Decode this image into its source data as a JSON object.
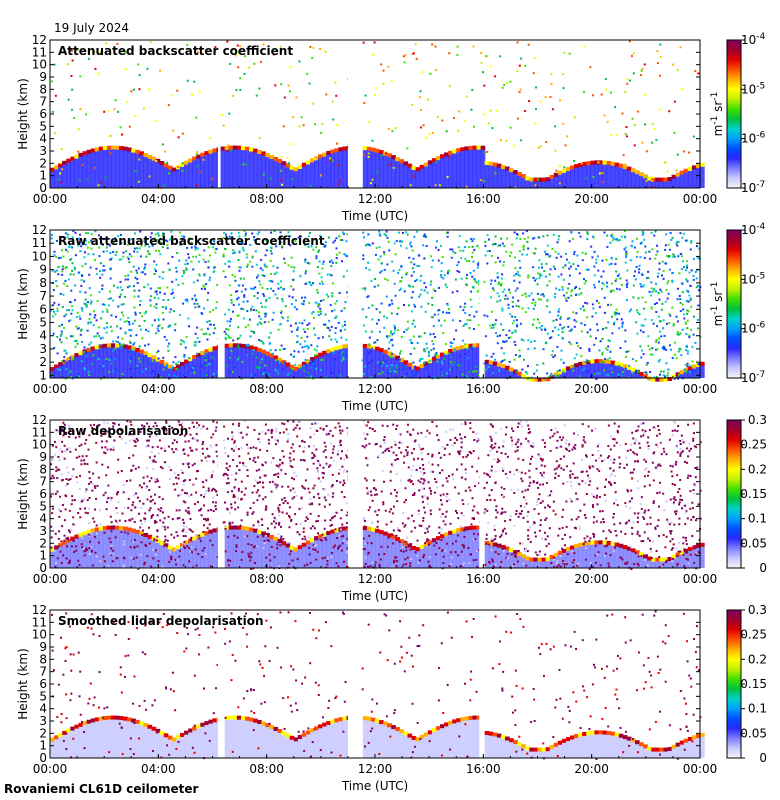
{
  "date": "19 July 2024",
  "footer": "Rovaniemi CL61D ceilometer",
  "colors": {
    "jet": [
      "#f4f4f4",
      "#c8c8ff",
      "#7d7dff",
      "#2828ff",
      "#0050ff",
      "#00a0ff",
      "#00d2c8",
      "#00c040",
      "#40e000",
      "#c0f000",
      "#ffff00",
      "#ffb000",
      "#ff5000",
      "#e00000",
      "#a00030",
      "#800060"
    ]
  },
  "chart_data": [
    {
      "type": "heatmap",
      "title": "Attenuated backscatter coefficient",
      "xlabel": "Time (UTC)",
      "ylabel": "Height (km)",
      "x_ticks": [
        "00:00",
        "04:00",
        "08:00",
        "12:00",
        "16:00",
        "20:00",
        "00:00"
      ],
      "y_ticks": [
        "0",
        "1",
        "2",
        "3",
        "4",
        "5",
        "6",
        "7",
        "8",
        "9",
        "10",
        "11",
        "12"
      ],
      "xlim": [
        0,
        24
      ],
      "ylim": [
        0,
        12
      ],
      "colorbar": {
        "scale": "log",
        "ticks": [
          {
            "base": "10",
            "exp": "-4"
          },
          {
            "base": "10",
            "exp": "-5"
          },
          {
            "base": "10",
            "exp": "-6"
          },
          {
            "base": "10",
            "exp": "-7"
          }
        ],
        "unit_main": "m",
        "unit_exp1": "-1",
        "unit_mid": " sr",
        "unit_exp2": "-1"
      }
    },
    {
      "type": "heatmap",
      "title": "Raw attenuated backscatter coefficient",
      "xlabel": "Time (UTC)",
      "ylabel": "Height (km)",
      "x_ticks": [
        "00:00",
        "04:00",
        "08:00",
        "12:00",
        "16:00",
        "20:00",
        "00:00"
      ],
      "y_ticks": [
        "1",
        "2",
        "3",
        "4",
        "5",
        "6",
        "7",
        "8",
        "9",
        "10",
        "11",
        "12"
      ],
      "xlim": [
        0,
        24
      ],
      "ylim": [
        0.8,
        12
      ],
      "colorbar": {
        "scale": "log",
        "ticks": [
          {
            "base": "10",
            "exp": "-4"
          },
          {
            "base": "10",
            "exp": "-5"
          },
          {
            "base": "10",
            "exp": "-6"
          },
          {
            "base": "10",
            "exp": "-7"
          }
        ],
        "unit_main": "m",
        "unit_exp1": "-1",
        "unit_mid": " sr",
        "unit_exp2": "-1"
      }
    },
    {
      "type": "heatmap",
      "title": "Raw depolarisation",
      "xlabel": "Time (UTC)",
      "ylabel": "Height (km)",
      "x_ticks": [
        "00:00",
        "04:00",
        "08:00",
        "12:00",
        "16:00",
        "20:00",
        "00:00"
      ],
      "y_ticks": [
        "0",
        "1",
        "2",
        "3",
        "4",
        "5",
        "6",
        "7",
        "8",
        "9",
        "10",
        "11",
        "12"
      ],
      "xlim": [
        0,
        24
      ],
      "ylim": [
        0,
        12
      ],
      "colorbar": {
        "scale": "linear",
        "ticks": [
          "0.3",
          "0.25",
          "0.2",
          "0.15",
          "0.1",
          "0.05",
          "0"
        ]
      }
    },
    {
      "type": "heatmap",
      "title": "Smoothed lidar depolarisation",
      "xlabel": "Time (UTC)",
      "ylabel": "Height (km)",
      "x_ticks": [
        "00:00",
        "04:00",
        "08:00",
        "12:00",
        "16:00",
        "20:00",
        "00:00"
      ],
      "y_ticks": [
        "0",
        "1",
        "2",
        "3",
        "4",
        "5",
        "6",
        "7",
        "8",
        "9",
        "10",
        "11",
        "12"
      ],
      "xlim": [
        0,
        24
      ],
      "ylim": [
        0,
        12
      ],
      "colorbar": {
        "scale": "linear",
        "ticks": [
          "0.3",
          "0.25",
          "0.2",
          "0.15",
          "0.1",
          "0.05",
          "0"
        ]
      }
    }
  ]
}
